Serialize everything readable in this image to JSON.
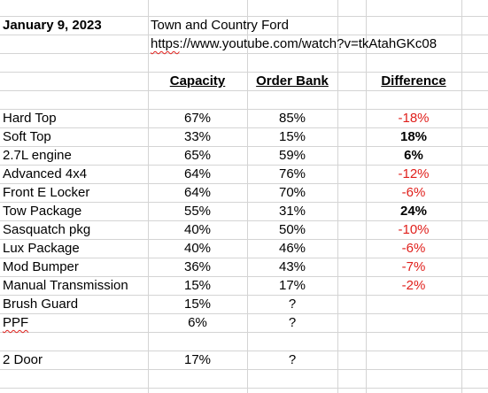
{
  "header": {
    "date": "January 9, 2023",
    "dealer": "Town and Country Ford",
    "url": "https://www.youtube.com/watch?v=tkAtahGKc08"
  },
  "table": {
    "columns": [
      "Capacity",
      "Order Bank",
      "Difference"
    ],
    "rows": [
      [
        "Hard Top",
        "67%",
        "85%",
        "-18%"
      ],
      [
        "Soft Top",
        "33%",
        "15%",
        "18%"
      ],
      [
        "2.7L engine",
        "65%",
        "59%",
        "6%"
      ],
      [
        "Advanced 4x4",
        "64%",
        "76%",
        "-12%"
      ],
      [
        "Front E Locker",
        "64%",
        "70%",
        "-6%"
      ],
      [
        "Tow Package",
        "55%",
        "31%",
        "24%"
      ],
      [
        "Sasquatch pkg",
        "40%",
        "50%",
        "-10%"
      ],
      [
        "Lux Package",
        "40%",
        "46%",
        "-6%"
      ],
      [
        "Mod Bumper",
        "36%",
        "43%",
        "-7%"
      ],
      [
        "Manual Transmission",
        "15%",
        "17%",
        "-2%"
      ],
      [
        "Brush Guard",
        "15%",
        "?"
      ],
      [
        "PPF",
        "6%",
        "?"
      ],
      [],
      [
        "2 Door",
        "17%",
        "?"
      ]
    ]
  }
}
